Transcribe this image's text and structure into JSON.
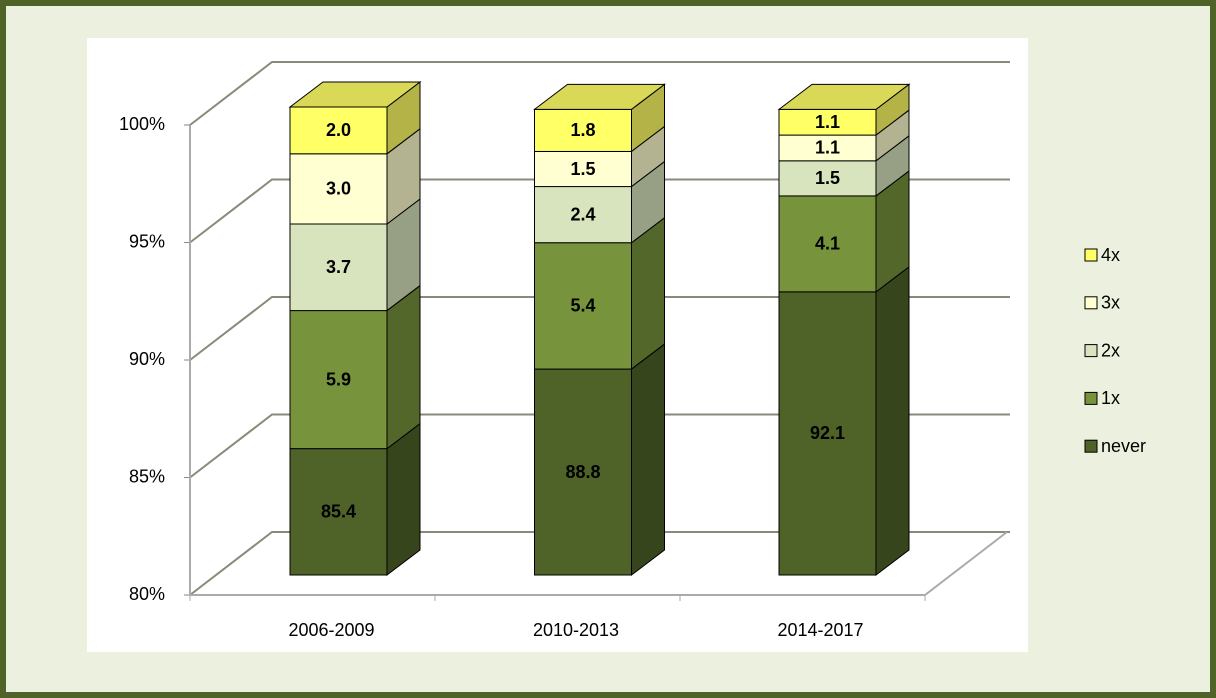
{
  "chart_data": {
    "type": "bar3d_stacked",
    "categories": [
      "2006-2009",
      "2010-2013",
      "2014-2017"
    ],
    "series": [
      {
        "name": "never",
        "color": "#4f6228",
        "values": [
          85.4,
          88.8,
          92.1
        ],
        "value_labels": [
          "85.4",
          "88.8",
          "92.1"
        ]
      },
      {
        "name": "1x",
        "color": "#77933c",
        "values": [
          5.9,
          5.4,
          4.1
        ],
        "value_labels": [
          "5.9",
          "5.4",
          "4.1"
        ]
      },
      {
        "name": "2x",
        "color": "#d7e4bd",
        "values": [
          3.7,
          2.4,
          1.5
        ],
        "value_labels": [
          "3.7",
          "2.4",
          "1.5"
        ]
      },
      {
        "name": "3x",
        "color": "#ffffd1",
        "values": [
          3.0,
          1.5,
          1.1
        ],
        "value_labels": [
          "3.0",
          "1.5",
          "1.1"
        ]
      },
      {
        "name": "4x",
        "color": "#ffff66",
        "values": [
          2.0,
          1.8,
          1.1
        ],
        "value_labels": [
          "2.0",
          "1.8",
          "1.1"
        ]
      }
    ],
    "ylim": [
      80,
      100
    ],
    "yticks": [
      {
        "value": 80,
        "label": "80%"
      },
      {
        "value": 85,
        "label": "85%"
      },
      {
        "value": 90,
        "label": "90%"
      },
      {
        "value": 95,
        "label": "95%"
      },
      {
        "value": 100,
        "label": "100%"
      }
    ],
    "grid": true,
    "legend": "right"
  }
}
